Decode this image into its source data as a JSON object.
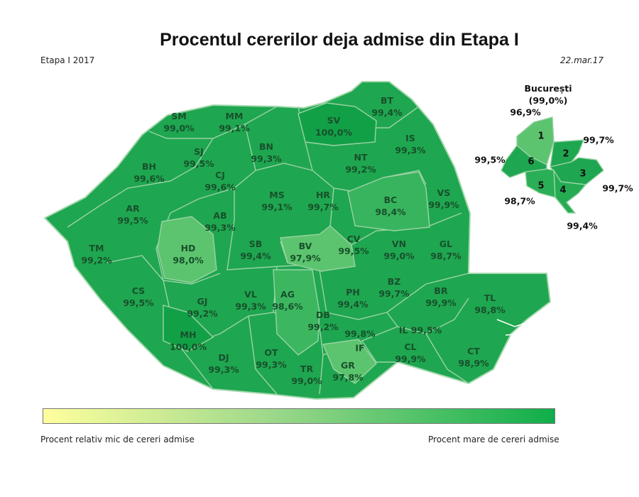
{
  "title": "Procentul cererilor deja admise din Etapa I",
  "stage_label": "Etapa I 2017",
  "date": "22.mar.17",
  "counties": [
    {
      "code": "SM",
      "value": "99,0%"
    },
    {
      "code": "MM",
      "value": "99,1%"
    },
    {
      "code": "SV",
      "value": "100,0%"
    },
    {
      "code": "BT",
      "value": "99,4%"
    },
    {
      "code": "SJ",
      "value": "99,5%"
    },
    {
      "code": "BN",
      "value": "99,3%"
    },
    {
      "code": "IS",
      "value": "99,3%"
    },
    {
      "code": "NT",
      "value": "99,2%"
    },
    {
      "code": "BH",
      "value": "99,6%"
    },
    {
      "code": "CJ",
      "value": "99,6%"
    },
    {
      "code": "MS",
      "value": "99,1%"
    },
    {
      "code": "HR",
      "value": "99,7%"
    },
    {
      "code": "BC",
      "value": "98,4%"
    },
    {
      "code": "VS",
      "value": "99,9%"
    },
    {
      "code": "AR",
      "value": "99,5%"
    },
    {
      "code": "AB",
      "value": "99,3%"
    },
    {
      "code": "TM",
      "value": "99,2%"
    },
    {
      "code": "HD",
      "value": "98,0%"
    },
    {
      "code": "SB",
      "value": "99,4%"
    },
    {
      "code": "BV",
      "value": "97,9%"
    },
    {
      "code": "CV",
      "value": "99,5%"
    },
    {
      "code": "VN",
      "value": "99,0%"
    },
    {
      "code": "GL",
      "value": "98,7%"
    },
    {
      "code": "CS",
      "value": "99,5%"
    },
    {
      "code": "GJ",
      "value": "99,2%"
    },
    {
      "code": "VL",
      "value": "99,3%"
    },
    {
      "code": "AG",
      "value": "98,6%"
    },
    {
      "code": "PH",
      "value": "99,4%"
    },
    {
      "code": "BZ",
      "value": "99,7%"
    },
    {
      "code": "BR",
      "value": "99,9%"
    },
    {
      "code": "TL",
      "value": "98,8%"
    },
    {
      "code": "DB",
      "value": "99,2%"
    },
    {
      "code": "MH",
      "value": "100,0%"
    },
    {
      "code": "IL",
      "value": "99,5%"
    },
    {
      "code": "OT",
      "value": "99,3%"
    },
    {
      "code": "DJ",
      "value": "99,3%"
    },
    {
      "code": "TR",
      "value": "99,0%"
    },
    {
      "code": "CL",
      "value": "99,9%"
    },
    {
      "code": "CT",
      "value": "98,9%"
    },
    {
      "code": "IF",
      "value": "99,8%"
    },
    {
      "code": "GR",
      "value": "97,8%"
    }
  ],
  "bucharest": {
    "title": "București",
    "total": "(99,0%)",
    "sectors": [
      {
        "num": "1",
        "value": "96,9%"
      },
      {
        "num": "2",
        "value": "99,7%"
      },
      {
        "num": "3",
        "value": "99,7%"
      },
      {
        "num": "4",
        "value": "99,4%"
      },
      {
        "num": "5",
        "value": "98,7%"
      },
      {
        "num": "6",
        "value": "99,5%"
      }
    ]
  },
  "legend": {
    "low_label": "Procent relativ mic de cereri admise",
    "high_label": "Procent mare de cereri admise",
    "low_color": "#ffff9e",
    "high_color": "#0fae4a"
  },
  "colors": {
    "dark": "#17a24b",
    "mid": "#25ac52",
    "light": "#5cc46e",
    "border": "#9ad3a5"
  }
}
